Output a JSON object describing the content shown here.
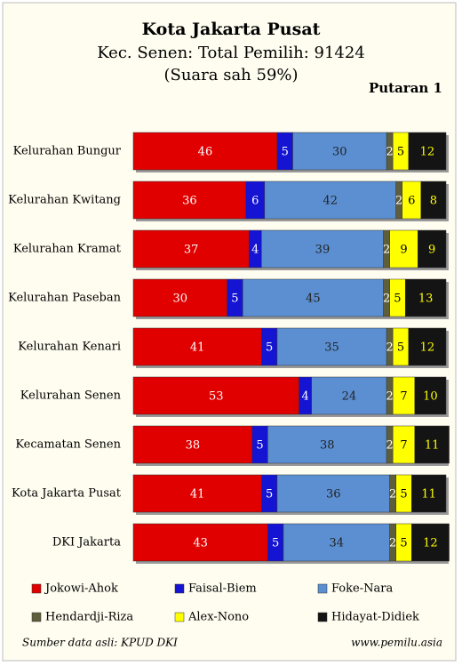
{
  "chart_data": {
    "type": "stacked-bar-horizontal",
    "title": "Kota Jakarta Pusat",
    "subtitle": "Kec. Senen: Total Pemilih: 91424",
    "note": "(Suara sah 59%)",
    "round_label": "Putaran 1",
    "source": "Sumber data asli: KPUD DKI",
    "website": "www.pemilu.asia",
    "categories": [
      "Kelurahan Bungur",
      "Kelurahan Kwitang",
      "Kelurahan Kramat",
      "Kelurahan Paseban",
      "Kelurahan Kenari",
      "Kelurahan Senen",
      "Kecamatan Senen",
      "Kota Jakarta Pusat",
      "DKI Jakarta"
    ],
    "xlim": [
      0,
      100
    ],
    "series": [
      {
        "name": "Jokowi-Ahok",
        "color": "#e00000",
        "values": [
          46,
          36,
          37,
          30,
          41,
          53,
          38,
          41,
          43
        ]
      },
      {
        "name": "Faisal-Biem",
        "color": "#1414d2",
        "values": [
          5,
          6,
          4,
          5,
          5,
          4,
          5,
          5,
          5
        ]
      },
      {
        "name": "Foke-Nara",
        "color": "#5b8fd2",
        "values": [
          30,
          42,
          39,
          45,
          35,
          24,
          38,
          36,
          34
        ]
      },
      {
        "name": "Hendardji-Riza",
        "color": "#5e5e3c",
        "values": [
          2,
          2,
          2,
          2,
          2,
          2,
          2,
          2,
          2
        ]
      },
      {
        "name": "Alex-Nono",
        "color": "#ffff00",
        "values": [
          5,
          6,
          9,
          5,
          5,
          7,
          7,
          5,
          5
        ]
      },
      {
        "name": "Hidayat-Didiek",
        "color": "#141414",
        "values": [
          12,
          8,
          9,
          13,
          12,
          10,
          11,
          11,
          12
        ]
      }
    ]
  }
}
